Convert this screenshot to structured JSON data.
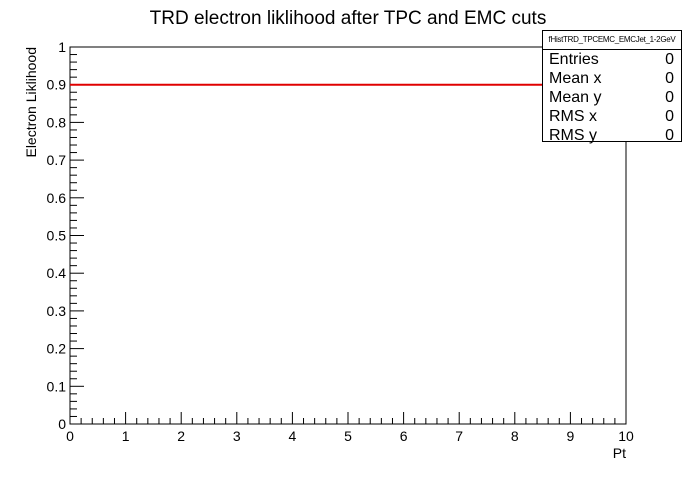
{
  "chart_data": {
    "type": "line",
    "title": "TRD electron liklihood after TPC and EMC cuts",
    "xlabel": "Pt",
    "ylabel": "Electron Liklihood",
    "xlim": [
      0,
      10
    ],
    "ylim": [
      0,
      1
    ],
    "x_ticks": [
      "0",
      "1",
      "2",
      "3",
      "4",
      "5",
      "6",
      "7",
      "8",
      "9",
      "10"
    ],
    "y_ticks": [
      "0",
      "0.1",
      "0.2",
      "0.3",
      "0.4",
      "0.5",
      "0.6",
      "0.7",
      "0.8",
      "0.9",
      "1"
    ],
    "grid": false,
    "series": [
      {
        "x": [
          0,
          10
        ],
        "y": [
          0.9,
          0.9
        ],
        "color": "#e00000"
      }
    ]
  },
  "stats": {
    "name": "fHistTRD_TPCEMC_EMCJet_1-2GeV",
    "rows": [
      {
        "label": "Entries",
        "value": "0"
      },
      {
        "label": "Mean x",
        "value": "0"
      },
      {
        "label": "Mean y",
        "value": "0"
      },
      {
        "label": "RMS x",
        "value": "0"
      },
      {
        "label": "RMS y",
        "value": "0"
      }
    ]
  }
}
